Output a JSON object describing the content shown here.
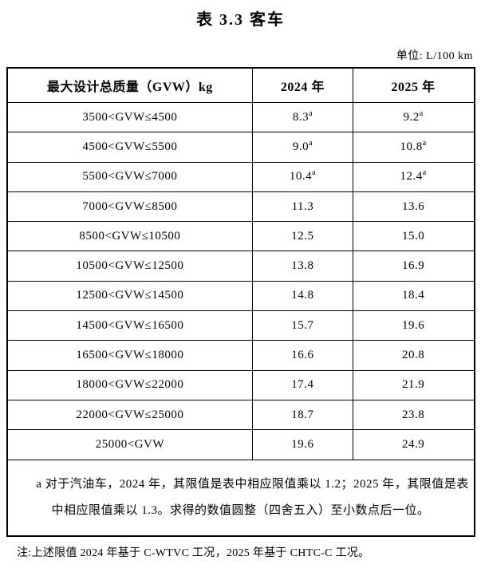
{
  "page": {
    "title": "表 3.3 客车",
    "unit_label": "单位: L/100 km",
    "note": "注:上述限值 2024 年基于 C-WTVC 工况，2025 年基于 CHTC-C 工况。"
  },
  "table": {
    "headers": {
      "gvw": "最大设计总质量（GVW）kg",
      "y2024": "2024 年",
      "y2025": "2025 年"
    },
    "rows": [
      {
        "range": "3500<GVW≤4500",
        "y2024": "8.3",
        "y2025": "9.2",
        "sup": "a"
      },
      {
        "range": "4500<GVW≤5500",
        "y2024": "9.0",
        "y2025": "10.8",
        "sup": "a"
      },
      {
        "range": "5500<GVW≤7000",
        "y2024": "10.4",
        "y2025": "12.4",
        "sup": "a"
      },
      {
        "range": "7000<GVW≤8500",
        "y2024": "11.3",
        "y2025": "13.6"
      },
      {
        "range": "8500<GVW≤10500",
        "y2024": "12.5",
        "y2025": "15.0"
      },
      {
        "range": "10500<GVW≤12500",
        "y2024": "13.8",
        "y2025": "16.9"
      },
      {
        "range": "12500<GVW≤14500",
        "y2024": "14.8",
        "y2025": "18.4"
      },
      {
        "range": "14500<GVW≤16500",
        "y2024": "15.7",
        "y2025": "19.6"
      },
      {
        "range": "16500<GVW≤18000",
        "y2024": "16.6",
        "y2025": "20.8"
      },
      {
        "range": "18000<GVW≤22000",
        "y2024": "17.4",
        "y2025": "21.9"
      },
      {
        "range": "22000<GVW≤25000",
        "y2024": "18.7",
        "y2025": "23.8"
      },
      {
        "range": "25000<GVW",
        "y2024": "19.6",
        "y2025": "24.9"
      }
    ],
    "footnote": "a 对于汽油车，2024 年，其限值是表中相应限值乘以 1.2；2025 年，其限值是表中相应限值乘以 1.3。求得的数值圆整（四舍五入）至小数点后一位。"
  },
  "colors": {
    "text": "#000000",
    "border": "#000000",
    "background": "#ffffff"
  }
}
